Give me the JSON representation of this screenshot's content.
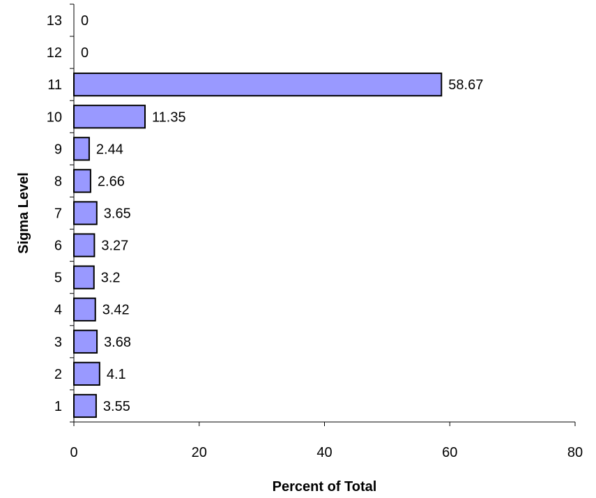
{
  "chart_data": {
    "type": "bar",
    "orientation": "horizontal",
    "categories": [
      "1",
      "2",
      "3",
      "4",
      "5",
      "6",
      "7",
      "8",
      "9",
      "10",
      "11",
      "12",
      "13"
    ],
    "values": [
      3.55,
      4.1,
      3.68,
      3.42,
      3.2,
      3.27,
      3.65,
      2.66,
      2.44,
      11.35,
      58.67,
      0,
      0
    ],
    "value_labels": [
      "3.55",
      "4.1",
      "3.68",
      "3.42",
      "3.2",
      "3.27",
      "3.65",
      "2.66",
      "2.44",
      "11.35",
      "58.67",
      "0",
      "0"
    ],
    "xlabel": "Percent of Total",
    "ylabel": "Sigma Level",
    "xlim": [
      0,
      80
    ],
    "xticks": [
      "0",
      "20",
      "40",
      "60",
      "80"
    ],
    "grid": false,
    "legend": "none",
    "bar_color": "#9999ff",
    "bar_edge_color": "#000000"
  }
}
